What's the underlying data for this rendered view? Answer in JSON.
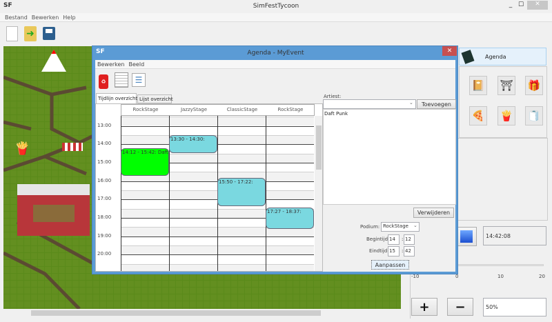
{
  "app": {
    "title": "SimFestTycoon",
    "logo": "SF"
  },
  "menu": [
    "Bestand",
    "Bewerken",
    "Help"
  ],
  "toolbar": {
    "icons": [
      "new-file-icon",
      "open-folder-icon",
      "save-icon"
    ]
  },
  "right_panel": {
    "agenda_label": "Agenda",
    "tools": [
      "stage-icon",
      "tent-icon",
      "gift-icon",
      "food-icon",
      "fries-icon",
      "toilet-roll-icon"
    ],
    "clock": "14:42:08",
    "slider": {
      "min": -10,
      "max": 20,
      "value": 0,
      "ticks": [
        "-10",
        "0",
        "10",
        "20"
      ]
    },
    "zoom_in": "+",
    "zoom_out": "−",
    "zoom_level": "50%"
  },
  "dialog": {
    "logo": "SF",
    "title": "Agenda - MyEvent",
    "menu": [
      "Bewerken",
      "Beeld"
    ],
    "tabs": [
      {
        "label": "Tijdlijn overzicht",
        "active": true
      },
      {
        "label": "Lijst overzicht",
        "active": false
      }
    ],
    "stages": [
      "RockStage",
      "JazzyStage",
      "ClassicStage",
      "RockStage"
    ],
    "hours": [
      "13:00",
      "14:00",
      "15:00",
      "16:00",
      "17:00",
      "18:00",
      "19:00",
      "20:00"
    ],
    "events": [
      {
        "stage": 0,
        "start": "14:12",
        "end": "15:42",
        "label": "14:12 - 15:42: Daft Punk",
        "color": "#00ff00"
      },
      {
        "stage": 1,
        "start": "13:30",
        "end": "14:30",
        "label": "13:30 - 14:30:",
        "color": "#7ad8e0"
      },
      {
        "stage": 2,
        "start": "15:50",
        "end": "17:22",
        "label": "15:50 - 17:22:",
        "color": "#7ad8e0"
      },
      {
        "stage": 3,
        "start": "17:27",
        "end": "18:37",
        "label": "17:27 - 18:37:",
        "color": "#7ad8e0"
      }
    ],
    "artist_label": "Artiest:",
    "artist_select": "",
    "add_button": "Toevoegen",
    "artists": [
      "Daft Punk"
    ],
    "remove_button": "Verwijderen",
    "podium_label": "Podium:",
    "podium_value": "RockStage",
    "begin_label": "Begintijd:",
    "begin_h": "14",
    "begin_m": "12",
    "end_label": "Eindtijd:",
    "end_h": "15",
    "end_m": "42",
    "sep": ":",
    "apply_button": "Aanpassen"
  }
}
